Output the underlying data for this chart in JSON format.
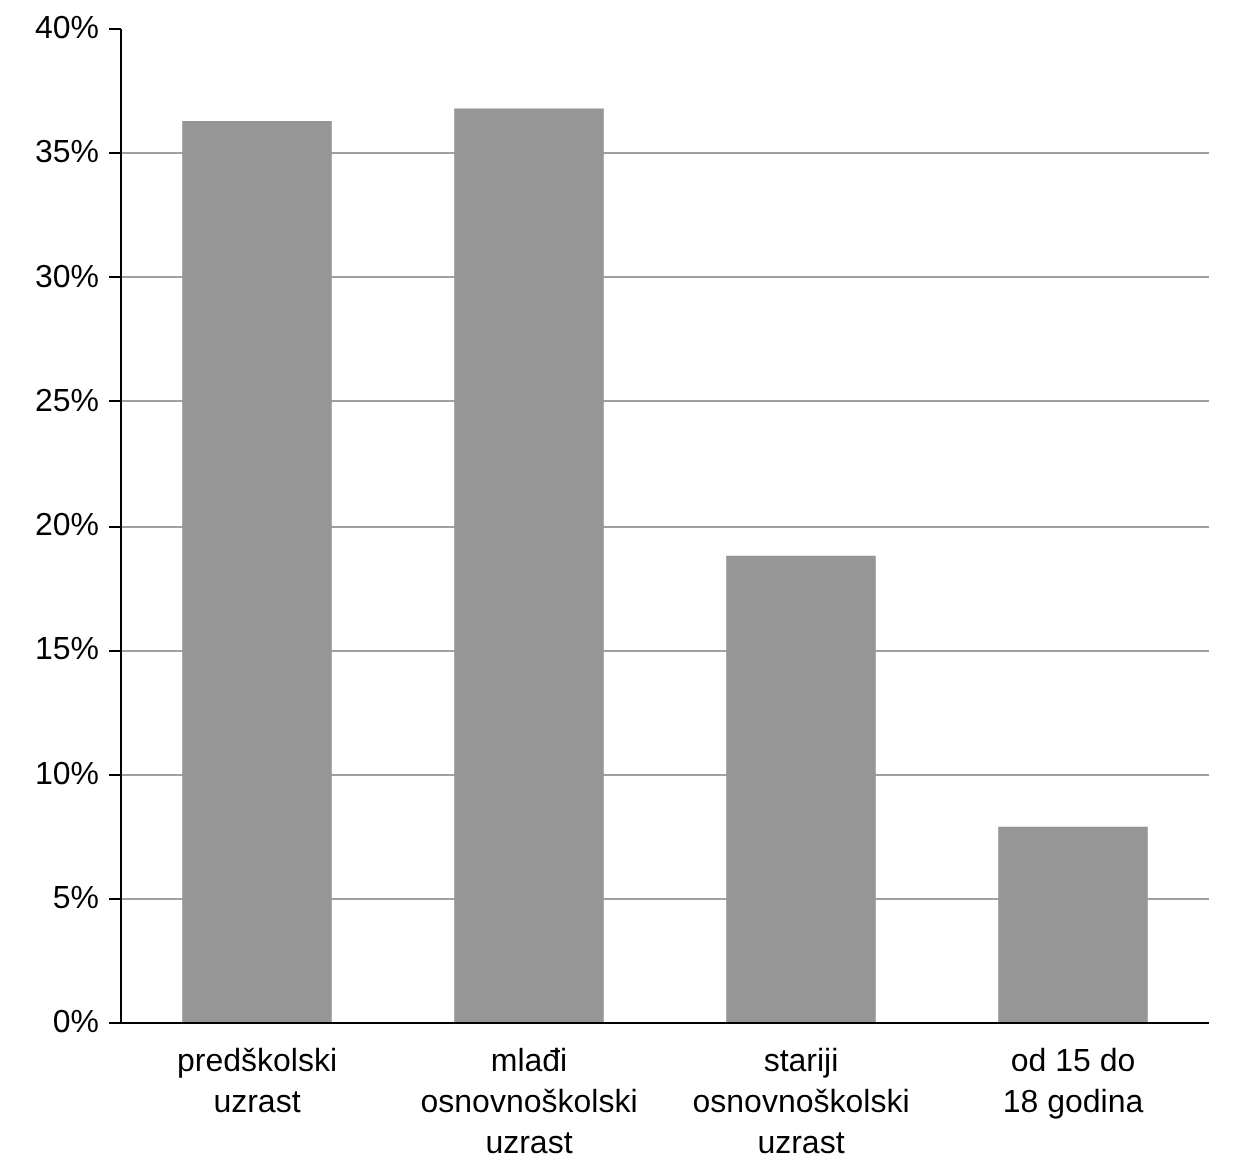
{
  "chart_data": {
    "type": "bar",
    "categories": [
      "predškolski\nuzrast",
      "mlađi\nosnovnoškolski\nuzrast",
      "stariji\nosnovnoškolski\nuzrast",
      "od 15 do\n18 godina"
    ],
    "values": [
      36.3,
      36.8,
      18.8,
      7.9
    ],
    "color": "#969696",
    "ylim": [
      0,
      40
    ],
    "yticks": [
      {
        "value": 0,
        "label": "0%"
      },
      {
        "value": 5,
        "label": "5%"
      },
      {
        "value": 10,
        "label": "10%"
      },
      {
        "value": 15,
        "label": "15%"
      },
      {
        "value": 20,
        "label": "20%"
      },
      {
        "value": 25,
        "label": "25%"
      },
      {
        "value": 30,
        "label": "30%"
      },
      {
        "value": 35,
        "label": "35%"
      },
      {
        "value": 40,
        "label": "40%"
      }
    ],
    "grid": "y"
  }
}
